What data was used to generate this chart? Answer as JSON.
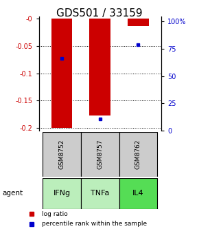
{
  "title": "GDS501 / 33159",
  "samples": [
    "GSM8752",
    "GSM8757",
    "GSM8762"
  ],
  "agents": [
    "IFNg",
    "TNFa",
    "IL4"
  ],
  "log_ratios": [
    -0.2,
    -0.178,
    -0.013
  ],
  "percentile_ranks": [
    63,
    10,
    75
  ],
  "ylim_left": [
    -0.205,
    0.005
  ],
  "yticks_left": [
    0,
    -0.05,
    -0.1,
    -0.15,
    -0.2
  ],
  "ytick_labels_left": [
    "-0",
    "-0.05",
    "-0.1",
    "-0.15",
    "-0.2"
  ],
  "yticks_right": [
    0,
    25,
    50,
    75,
    100
  ],
  "ytick_labels_right": [
    "0",
    "25",
    "50",
    "75",
    "100%"
  ],
  "bar_color": "#cc0000",
  "percentile_color": "#0000cc",
  "sample_bg_color": "#cccccc",
  "agent_colors": [
    "#bbeebb",
    "#bbeebb",
    "#55dd55"
  ],
  "title_fontsize": 11,
  "bar_width": 0.55,
  "legend_log_ratio": "log ratio",
  "legend_percentile": "percentile rank within the sample"
}
